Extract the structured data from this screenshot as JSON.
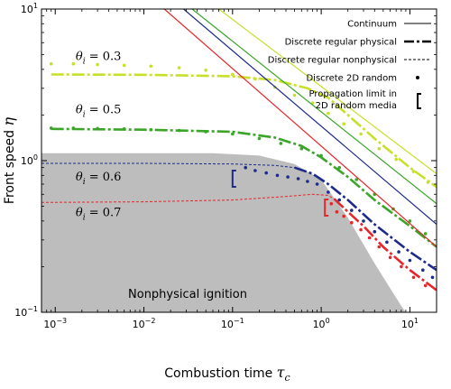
{
  "chart_data": {
    "type": "line",
    "xscale": "log",
    "yscale": "log",
    "xlim": [
      0.0007,
      20
    ],
    "ylim": [
      0.1,
      10
    ],
    "xlabel_prefix": "Combustion time ",
    "xlabel_symbol": "τ",
    "xlabel_sub": "c",
    "ylabel_prefix": "Front speed ",
    "ylabel_symbol": "η",
    "x_ticks": [
      {
        "value": 0.001,
        "base": "10",
        "exp": "−3"
      },
      {
        "value": 0.01,
        "base": "10",
        "exp": "−2"
      },
      {
        "value": 0.1,
        "base": "10",
        "exp": "−1"
      },
      {
        "value": 1,
        "base": "10",
        "exp": "0"
      },
      {
        "value": 10,
        "base": "10",
        "exp": "1"
      }
    ],
    "y_ticks": [
      {
        "value": 0.1,
        "base": "10",
        "exp": "−1"
      },
      {
        "value": 1,
        "base": "10",
        "exp": "0"
      },
      {
        "value": 10,
        "base": "10",
        "exp": "1"
      }
    ],
    "legend": {
      "position": "top-right",
      "entries": [
        {
          "label": "Continuum",
          "style": "solid"
        },
        {
          "label": "Discrete regular physical",
          "style": "dashdot"
        },
        {
          "label": "Discrete regular nonphysical",
          "style": "dotted"
        },
        {
          "label": "Discrete 2D random",
          "style": "point"
        },
        {
          "label": "Propagation limit in",
          "label2": "2D random media",
          "style": "bracket"
        }
      ]
    },
    "region": {
      "label": "Nonphysical ignition",
      "color": "#bdbdbd",
      "boundary": [
        [
          0.0007,
          1.12
        ],
        [
          0.06,
          1.12
        ],
        [
          0.2,
          1.08
        ],
        [
          0.5,
          0.95
        ],
        [
          1,
          0.75
        ],
        [
          2,
          0.42
        ],
        [
          4,
          0.21
        ],
        [
          8,
          0.11
        ],
        [
          9,
          0.1
        ]
      ]
    },
    "series": [
      {
        "theta_label": "θ",
        "theta_sub": "i",
        "theta_value": " = 0.3",
        "annot_x": 0.0017,
        "annot_y": 4.6,
        "color": "#c8e02a",
        "continuum": [
          [
            0.07,
            10
          ],
          [
            20,
            0.82
          ]
        ],
        "physical": [
          [
            0.0009,
            3.7
          ],
          [
            0.01,
            3.68
          ],
          [
            0.1,
            3.6
          ],
          [
            0.3,
            3.4
          ],
          [
            0.7,
            3.0
          ],
          [
            1.2,
            2.6
          ],
          [
            2,
            2.0
          ],
          [
            4,
            1.4
          ],
          [
            10,
            0.9
          ],
          [
            20,
            0.67
          ]
        ],
        "random": [
          [
            0.0009,
            4.35
          ],
          [
            0.0016,
            4.35
          ],
          [
            0.003,
            4.3
          ],
          [
            0.006,
            4.25
          ],
          [
            0.012,
            4.2
          ],
          [
            0.025,
            4.1
          ],
          [
            0.05,
            3.95
          ],
          [
            0.1,
            3.7
          ],
          [
            0.18,
            3.45
          ],
          [
            0.3,
            3.05
          ],
          [
            0.5,
            2.7
          ],
          [
            0.8,
            2.4
          ],
          [
            1.2,
            2.05
          ],
          [
            1.8,
            1.75
          ],
          [
            2.8,
            1.5
          ],
          [
            4.5,
            1.2
          ],
          [
            7,
            1.02
          ],
          [
            11,
            0.85
          ],
          [
            16,
            0.72
          ]
        ]
      },
      {
        "theta_label": "θ",
        "theta_sub": "i",
        "theta_value": " = 0.5",
        "annot_x": 0.0017,
        "annot_y": 2.05,
        "color": "#3aa528",
        "continuum": [
          [
            0.035,
            10
          ],
          [
            20,
            0.52
          ]
        ],
        "physical": [
          [
            0.0009,
            1.62
          ],
          [
            0.01,
            1.6
          ],
          [
            0.1,
            1.55
          ],
          [
            0.3,
            1.42
          ],
          [
            0.6,
            1.25
          ],
          [
            1,
            1.05
          ],
          [
            2,
            0.78
          ],
          [
            4,
            0.55
          ],
          [
            10,
            0.37
          ],
          [
            20,
            0.27
          ]
        ],
        "random": [
          [
            0.0009,
            1.64
          ],
          [
            0.0016,
            1.64
          ],
          [
            0.003,
            1.63
          ],
          [
            0.006,
            1.62
          ],
          [
            0.012,
            1.6
          ],
          [
            0.025,
            1.58
          ],
          [
            0.05,
            1.55
          ],
          [
            0.1,
            1.5
          ],
          [
            0.2,
            1.4
          ],
          [
            0.35,
            1.3
          ],
          [
            0.6,
            1.2
          ],
          [
            1,
            1.08
          ],
          [
            1.6,
            0.9
          ],
          [
            2.5,
            0.75
          ],
          [
            4,
            0.6
          ],
          [
            6.5,
            0.48
          ],
          [
            10,
            0.4
          ],
          [
            15,
            0.33
          ]
        ]
      },
      {
        "theta_label": "θ",
        "theta_sub": "i",
        "theta_value": " = 0.6",
        "annot_x": 0.0017,
        "annot_y": 0.74,
        "color": "#1c2a8c",
        "continuum": [
          [
            0.028,
            10
          ],
          [
            20,
            0.38
          ]
        ],
        "physical": [
          [
            0.5,
            0.9
          ],
          [
            0.8,
            0.82
          ],
          [
            1.2,
            0.7
          ],
          [
            2,
            0.55
          ],
          [
            4,
            0.38
          ],
          [
            10,
            0.25
          ],
          [
            20,
            0.19
          ]
        ],
        "nonphysical": [
          [
            0.0007,
            0.96
          ],
          [
            0.01,
            0.96
          ],
          [
            0.1,
            0.95
          ],
          [
            0.3,
            0.93
          ],
          [
            0.5,
            0.9
          ]
        ],
        "random": [
          [
            0.14,
            0.9
          ],
          [
            0.18,
            0.86
          ],
          [
            0.24,
            0.83
          ],
          [
            0.32,
            0.8
          ],
          [
            0.42,
            0.78
          ],
          [
            0.55,
            0.76
          ],
          [
            0.7,
            0.73
          ],
          [
            0.9,
            0.7
          ],
          [
            1.2,
            0.62
          ],
          [
            1.6,
            0.55
          ],
          [
            2.2,
            0.47
          ],
          [
            3,
            0.4
          ],
          [
            4,
            0.34
          ],
          [
            5.5,
            0.29
          ],
          [
            7.5,
            0.25
          ],
          [
            10,
            0.22
          ],
          [
            14,
            0.19
          ],
          [
            18,
            0.17
          ]
        ],
        "limit": {
          "x": 0.1,
          "y": 0.76
        }
      },
      {
        "theta_label": "θ",
        "theta_sub": "i",
        "theta_value": " = 0.7",
        "annot_x": 0.0017,
        "annot_y": 0.43,
        "color": "#e8262a",
        "continuum": [
          [
            0.017,
            10
          ],
          [
            20,
            0.27
          ]
        ],
        "physical": [
          [
            1.4,
            0.56
          ],
          [
            2,
            0.46
          ],
          [
            3,
            0.37
          ],
          [
            5,
            0.27
          ],
          [
            10,
            0.19
          ],
          [
            20,
            0.14
          ]
        ],
        "nonphysical": [
          [
            0.0007,
            0.53
          ],
          [
            0.01,
            0.535
          ],
          [
            0.1,
            0.55
          ],
          [
            0.4,
            0.58
          ],
          [
            0.8,
            0.6
          ],
          [
            1.2,
            0.59
          ],
          [
            1.4,
            0.56
          ]
        ],
        "random": [
          [
            1.3,
            0.52
          ],
          [
            1.5,
            0.46
          ],
          [
            1.8,
            0.43
          ],
          [
            2.2,
            0.39
          ],
          [
            2.8,
            0.35
          ],
          [
            3.5,
            0.31
          ],
          [
            4.5,
            0.27
          ],
          [
            6,
            0.23
          ],
          [
            8,
            0.2
          ],
          [
            11,
            0.17
          ],
          [
            15,
            0.15
          ]
        ],
        "limit": {
          "x": 1.1,
          "y": 0.49
        }
      }
    ]
  }
}
